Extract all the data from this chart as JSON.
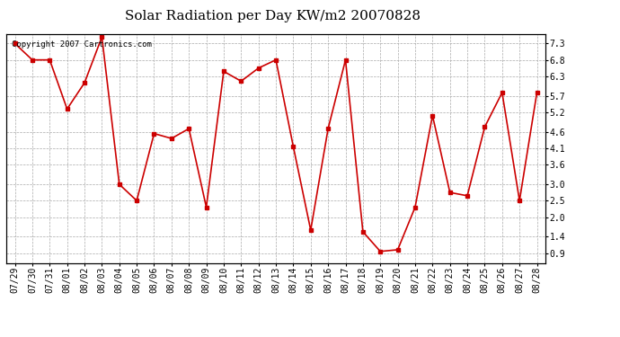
{
  "title": "Solar Radiation per Day KW/m2 20070828",
  "copyright_text": "Copyright 2007 Cartronics.com",
  "dates": [
    "07/29",
    "07/30",
    "07/31",
    "08/01",
    "08/02",
    "08/03",
    "08/04",
    "08/05",
    "08/06",
    "08/07",
    "08/08",
    "08/09",
    "08/10",
    "08/11",
    "08/12",
    "08/13",
    "08/14",
    "08/15",
    "08/16",
    "08/17",
    "08/18",
    "08/19",
    "08/20",
    "08/21",
    "08/22",
    "08/23",
    "08/24",
    "08/25",
    "08/26",
    "08/27",
    "08/28"
  ],
  "values": [
    7.3,
    6.8,
    6.8,
    5.3,
    6.1,
    7.5,
    3.0,
    2.5,
    4.55,
    4.4,
    4.7,
    2.3,
    6.45,
    6.15,
    6.55,
    6.8,
    4.15,
    1.6,
    4.7,
    6.8,
    1.55,
    0.95,
    1.0,
    2.3,
    5.1,
    2.75,
    2.65,
    4.75,
    5.8,
    2.5,
    5.8
  ],
  "line_color": "#cc0000",
  "marker": "s",
  "marker_size": 2.5,
  "bg_color": "#ffffff",
  "plot_bg_color": "#ffffff",
  "grid_color": "#aaaaaa",
  "ylim": [
    0.6,
    7.6
  ],
  "yticks": [
    0.9,
    1.4,
    2.0,
    2.5,
    3.0,
    3.6,
    4.1,
    4.6,
    5.2,
    5.7,
    6.3,
    6.8,
    7.3
  ],
  "title_fontsize": 11,
  "tick_fontsize": 7,
  "copyright_fontsize": 6.5
}
